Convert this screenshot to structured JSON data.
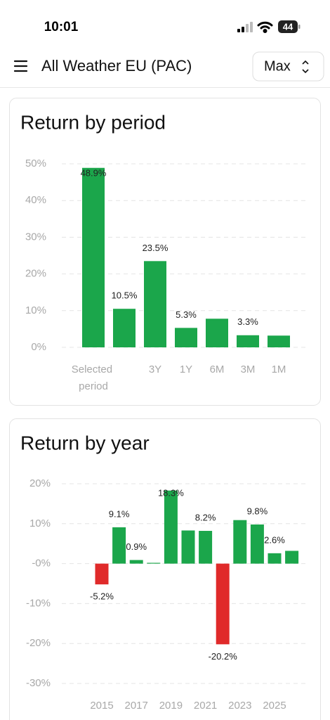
{
  "status_bar": {
    "time": "10:01",
    "battery": "44"
  },
  "header": {
    "title": "All Weather EU (PAC)",
    "range_button": "Max"
  },
  "chart_data": [
    {
      "type": "bar",
      "title": "Return by period",
      "categories": [
        "Selected period",
        null,
        "3Y",
        "1Y",
        "6M",
        "3M",
        "1M"
      ],
      "values": [
        48.9,
        10.5,
        23.5,
        5.3,
        7.8,
        3.3,
        3.2
      ],
      "value_labels": [
        "48.9%",
        "10.5%",
        "23.5%",
        "5.3%",
        null,
        "3.3%",
        null
      ],
      "color": "#1ba64b",
      "ylim": [
        0,
        50
      ],
      "yticks": [
        {
          "value": 0,
          "label": "0%"
        },
        {
          "value": 10,
          "label": "10%"
        },
        {
          "value": 20,
          "label": "20%"
        },
        {
          "value": 30,
          "label": "30%"
        },
        {
          "value": 40,
          "label": "40%"
        },
        {
          "value": 50,
          "label": "50%"
        }
      ],
      "grid": true
    },
    {
      "type": "bar",
      "title": "Return by year",
      "categories": [
        "2015",
        null,
        "2017",
        null,
        "2019",
        null,
        "2021",
        null,
        "2023",
        null,
        "2025",
        null
      ],
      "values": [
        -5.2,
        9.1,
        0.9,
        0.2,
        18.3,
        8.3,
        8.2,
        -20.2,
        10.9,
        9.8,
        2.6,
        3.2
      ],
      "value_labels": [
        "-5.2%",
        "9.1%",
        "0.9%",
        null,
        "18.3%",
        null,
        "8.2%",
        "-20.2%",
        null,
        "9.8%",
        "2.6%",
        null
      ],
      "color": "#1ba64b",
      "negative_color": "#e02a2a",
      "ylim": [
        -30,
        20
      ],
      "yticks": [
        {
          "value": 20,
          "label": "20%"
        },
        {
          "value": 10,
          "label": "10%"
        },
        {
          "value": 0,
          "label": "-0%"
        },
        {
          "value": -10,
          "label": "-10%"
        },
        {
          "value": -20,
          "label": "-20%"
        },
        {
          "value": -30,
          "label": "-30%"
        }
      ],
      "grid": true
    }
  ]
}
